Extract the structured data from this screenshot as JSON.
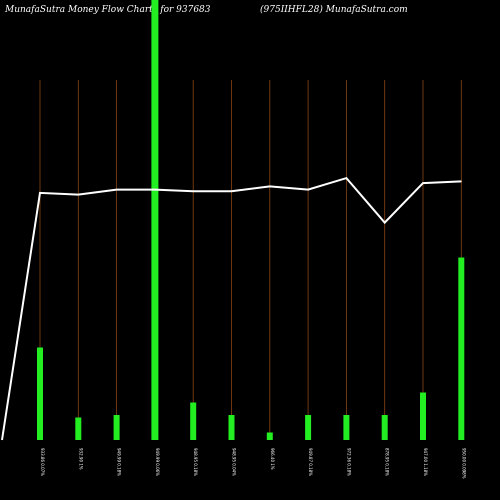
{
  "header": {
    "left_title": "MunafaSutra  Money Flow  Charts for 937683",
    "right_title": "(975IIHFL28) MunafaSutra.com"
  },
  "colors": {
    "background": "#000000",
    "bar": "#22ee22",
    "line": "#ffffff",
    "gridline": "#8b4513",
    "text": "#ffffff"
  },
  "chart_data": {
    "type": "bar",
    "categories": [
      "933.86 0.07%",
      "932.90 1%",
      "949.99 0.18%",
      "949.99 0.06%",
      "948.95 0.18%",
      "948.95 0.04%",
      "966.40 1%",
      "949.87 0.18%",
      "972.36 0.18%",
      "878.95 0.18%",
      "947.00 1.18%",
      "950.00 0.098%"
    ],
    "bar_values": [
      37,
      9,
      10,
      100,
      15,
      10,
      3,
      10,
      10,
      10,
      19,
      73
    ],
    "line_values": [
      1000,
      999,
      1002,
      1002,
      1001,
      1001,
      1004,
      1002,
      1009,
      982,
      1006,
      1007
    ],
    "line_start_value": 850,
    "highlight_index": 3,
    "grid": true,
    "legend": "none"
  }
}
